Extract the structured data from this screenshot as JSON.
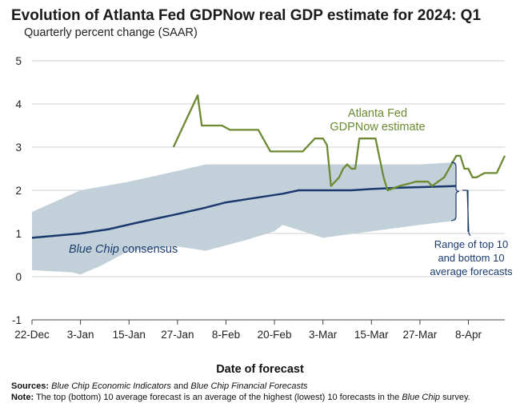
{
  "chart_data": {
    "type": "line",
    "title": "Evolution of Atlanta Fed GDPNow real GDP estimate for 2024: Q1",
    "subtitle": "Quarterly percent change (SAAR)",
    "xlabel": "Date of forecast",
    "ylabel": "",
    "ylim": [
      -1,
      5
    ],
    "yticks": [
      "-1",
      "0",
      "1",
      "2",
      "3",
      "4",
      "5"
    ],
    "xlim": [
      "2023-12-22",
      "2024-04-17"
    ],
    "xticks": [
      {
        "date": "2023-12-22",
        "label": "22-Dec"
      },
      {
        "date": "2024-01-03",
        "label": "3-Jan"
      },
      {
        "date": "2024-01-15",
        "label": "15-Jan"
      },
      {
        "date": "2024-01-27",
        "label": "27-Jan"
      },
      {
        "date": "2024-02-08",
        "label": "8-Feb"
      },
      {
        "date": "2024-02-20",
        "label": "20-Feb"
      },
      {
        "date": "2024-03-03",
        "label": "3-Mar"
      },
      {
        "date": "2024-03-15",
        "label": "15-Mar"
      },
      {
        "date": "2024-03-27",
        "label": "27-Mar"
      },
      {
        "date": "2024-04-08",
        "label": "8-Apr"
      }
    ],
    "grid": "horizontal",
    "band": {
      "name": "Range of top 10 and bottom 10 average forecasts",
      "color": "#c2d0d9",
      "upper": [
        [
          "2023-12-22",
          1.5
        ],
        [
          "2024-01-03",
          2.0
        ],
        [
          "2024-01-15",
          2.2
        ],
        [
          "2024-01-27",
          2.45
        ],
        [
          "2024-02-03",
          2.6
        ],
        [
          "2024-02-20",
          2.6
        ],
        [
          "2024-03-03",
          2.6
        ],
        [
          "2024-03-15",
          2.6
        ],
        [
          "2024-03-27",
          2.6
        ],
        [
          "2024-04-05",
          2.65
        ]
      ],
      "lower": [
        [
          "2023-12-22",
          0.15
        ],
        [
          "2024-01-01",
          0.1
        ],
        [
          "2024-01-03",
          0.05
        ],
        [
          "2024-01-08",
          0.25
        ],
        [
          "2024-01-15",
          0.6
        ],
        [
          "2024-01-27",
          0.7
        ],
        [
          "2024-02-03",
          0.6
        ],
        [
          "2024-02-13",
          0.85
        ],
        [
          "2024-02-20",
          1.05
        ],
        [
          "2024-02-22",
          1.2
        ],
        [
          "2024-03-03",
          0.9
        ],
        [
          "2024-03-15",
          1.05
        ],
        [
          "2024-03-27",
          1.2
        ],
        [
          "2024-04-05",
          1.3
        ]
      ]
    },
    "series": [
      {
        "name": "Blue Chip consensus",
        "color": "#1a3a6e",
        "points": [
          [
            "2023-12-22",
            0.9
          ],
          [
            "2024-01-03",
            1.0
          ],
          [
            "2024-01-10",
            1.1
          ],
          [
            "2024-01-17",
            1.25
          ],
          [
            "2024-01-27",
            1.45
          ],
          [
            "2024-02-03",
            1.6
          ],
          [
            "2024-02-08",
            1.72
          ],
          [
            "2024-02-15",
            1.82
          ],
          [
            "2024-02-22",
            1.92
          ],
          [
            "2024-02-26",
            2.0
          ],
          [
            "2024-03-03",
            2.0
          ],
          [
            "2024-03-10",
            2.0
          ],
          [
            "2024-03-15",
            2.03
          ],
          [
            "2024-03-22",
            2.06
          ],
          [
            "2024-03-29",
            2.08
          ],
          [
            "2024-04-05",
            2.1
          ]
        ]
      },
      {
        "name": "Atlanta Fed GDPNow estimate",
        "color": "#6b8a32",
        "points": [
          [
            "2024-01-26",
            3.0
          ],
          [
            "2024-01-29",
            3.6
          ],
          [
            "2024-02-01",
            4.2
          ],
          [
            "2024-02-02",
            3.5
          ],
          [
            "2024-02-07",
            3.5
          ],
          [
            "2024-02-09",
            3.4
          ],
          [
            "2024-02-15",
            3.4
          ],
          [
            "2024-02-16",
            3.4
          ],
          [
            "2024-02-19",
            2.9
          ],
          [
            "2024-02-27",
            2.9
          ],
          [
            "2024-03-01",
            3.2
          ],
          [
            "2024-03-03",
            3.2
          ],
          [
            "2024-03-04",
            3.05
          ],
          [
            "2024-03-05",
            2.1
          ],
          [
            "2024-03-07",
            2.3
          ],
          [
            "2024-03-08",
            2.5
          ],
          [
            "2024-03-09",
            2.6
          ],
          [
            "2024-03-10",
            2.5
          ],
          [
            "2024-03-11",
            2.5
          ],
          [
            "2024-03-12",
            3.2
          ],
          [
            "2024-03-15",
            3.2
          ],
          [
            "2024-03-16",
            3.2
          ],
          [
            "2024-03-18",
            2.3
          ],
          [
            "2024-03-19",
            2.0
          ],
          [
            "2024-03-22",
            2.1
          ],
          [
            "2024-03-26",
            2.2
          ],
          [
            "2024-03-29",
            2.2
          ],
          [
            "2024-03-30",
            2.1
          ],
          [
            "2024-04-02",
            2.3
          ],
          [
            "2024-04-05",
            2.8
          ],
          [
            "2024-04-06",
            2.8
          ],
          [
            "2024-04-07",
            2.5
          ],
          [
            "2024-04-08",
            2.5
          ],
          [
            "2024-04-09",
            2.3
          ],
          [
            "2024-04-10",
            2.3
          ],
          [
            "2024-04-12",
            2.4
          ],
          [
            "2024-04-15",
            2.4
          ],
          [
            "2024-04-17",
            2.8
          ]
        ]
      }
    ],
    "annotations": {
      "gdpnow": [
        "Atlanta Fed",
        "GDPNow estimate"
      ],
      "consensus_italic": "Blue Chip",
      "consensus_rest": " consensus",
      "range": [
        "Range of top 10",
        "and bottom 10",
        "average forecasts"
      ]
    }
  },
  "footer": {
    "sources_label": "Sources:",
    "sources_text_1": "Blue Chip Economic Indicators",
    "sources_text_2": " and ",
    "sources_text_3": "Blue Chip Financial Forecasts",
    "note_label": "Note:",
    "note_text_1": " The top (bottom) 10 average forecast is an average of the highest (lowest) 10 forecasts in the ",
    "note_text_2": "Blue Chip",
    "note_text_3": " survey."
  }
}
